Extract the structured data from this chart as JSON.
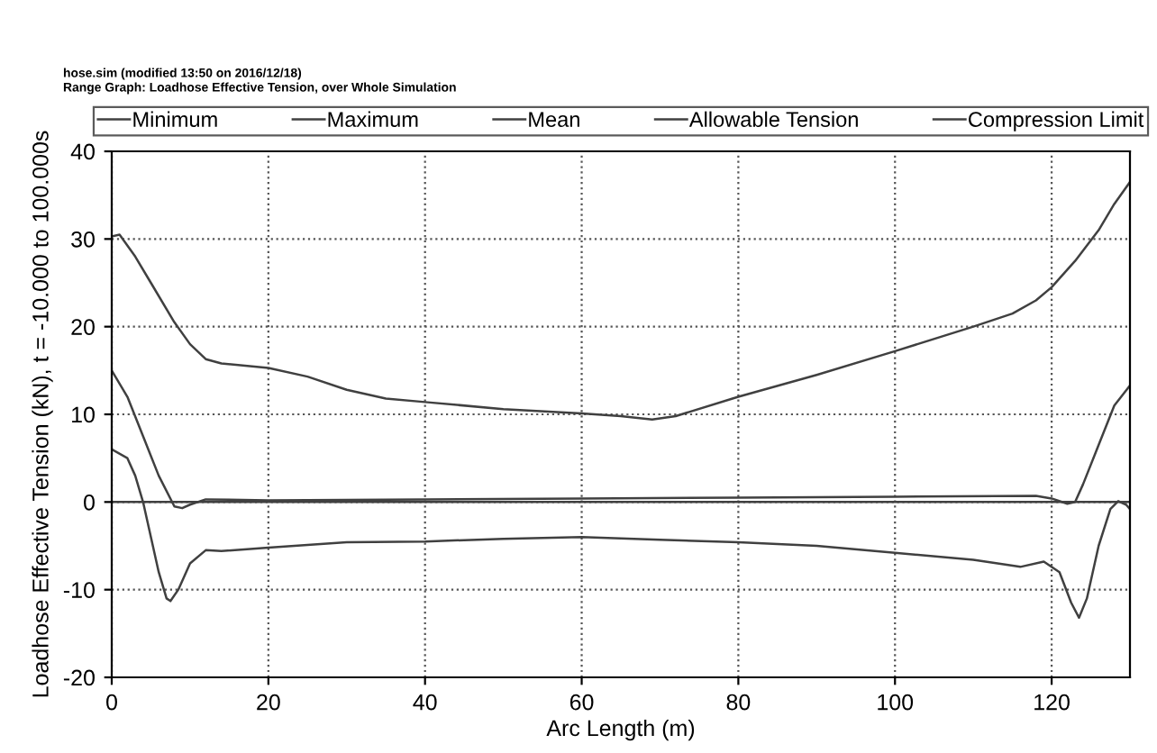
{
  "chart_data": {
    "type": "line",
    "xlabel": "Arc Length (m)",
    "ylabel": "Loadhose Effective Tension (kN), t = -10.000 to 100.000s",
    "annotations": [
      "hose.sim (modified 13:50 on 2016/12/18)",
      "Range Graph: Loadhose Effective Tension, over Whole Simulation"
    ],
    "series": [
      {
        "name": "Minimum",
        "color": "#404040",
        "x": [
          0,
          2,
          3,
          4,
          5,
          6,
          7,
          7.5,
          8.5,
          10,
          12,
          14,
          20,
          30,
          40,
          50,
          60,
          70,
          80,
          90,
          100,
          110,
          116,
          119,
          121,
          122.5,
          123.5,
          124.5,
          126,
          127.5,
          128.5,
          129.5,
          130
        ],
        "values": [
          6,
          5,
          3,
          0,
          -4,
          -8,
          -11,
          -11.3,
          -10,
          -7,
          -5.5,
          -5.6,
          -5.2,
          -4.6,
          -4.5,
          -4.2,
          -4,
          -4.3,
          -4.6,
          -5,
          -5.8,
          -6.6,
          -7.4,
          -6.8,
          -8,
          -11.5,
          -13.2,
          -11,
          -5,
          -0.8,
          0.1,
          -0.3,
          -0.8
        ]
      },
      {
        "name": "Maximum",
        "color": "#404040",
        "x": [
          0,
          1,
          3,
          5,
          8,
          10,
          12,
          14,
          20,
          25,
          30,
          35,
          40,
          50,
          60,
          65,
          69,
          72,
          80,
          90,
          100,
          110,
          115,
          118,
          120,
          123,
          126,
          128,
          130
        ],
        "values": [
          30.3,
          30.5,
          28,
          25,
          20.5,
          18,
          16.3,
          15.8,
          15.3,
          14.3,
          12.8,
          11.8,
          11.4,
          10.6,
          10.1,
          9.8,
          9.4,
          9.8,
          12,
          14.5,
          17.2,
          20,
          21.5,
          23,
          24.5,
          27.5,
          31,
          34,
          36.5
        ]
      },
      {
        "name": "Mean",
        "color": "#404040",
        "x": [
          0,
          2,
          4,
          6,
          8,
          9,
          10,
          12,
          20,
          40,
          60,
          80,
          100,
          118,
          120,
          122,
          123,
          124,
          126,
          128,
          130
        ],
        "values": [
          15,
          12,
          7.5,
          3,
          -0.5,
          -0.7,
          -0.3,
          0.3,
          0.2,
          0.3,
          0.4,
          0.5,
          0.6,
          0.7,
          0.4,
          -0.2,
          0,
          2,
          6.5,
          11,
          13.3
        ]
      },
      {
        "name": "Allowable Tension",
        "color": "#404040"
      },
      {
        "name": "Compression Limit",
        "color": "#404040",
        "x": [
          0,
          130
        ],
        "values": [
          0,
          0
        ]
      }
    ],
    "xlim": [
      0,
      130
    ],
    "xticks": [
      0,
      20,
      40,
      60,
      80,
      100,
      120
    ],
    "ylim": [
      -20,
      40
    ],
    "yticks": [
      -20,
      -10,
      0,
      10,
      20,
      30,
      40
    ],
    "grid": true,
    "legend": "top",
    "marker": "none",
    "line_style": "solid"
  }
}
